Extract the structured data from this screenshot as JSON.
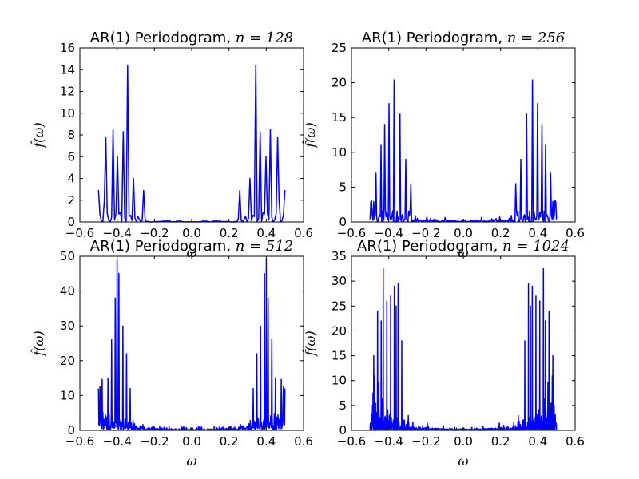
{
  "chart_data": [
    {
      "type": "line",
      "title_text": "AR(1) Periodogram, ",
      "title_math": "n = 128",
      "xlabel": "ω",
      "ylabel": "f̂(ω)",
      "xlim": [
        -0.6,
        0.6
      ],
      "ylim": [
        0,
        16
      ],
      "xticks": [
        -0.6,
        -0.4,
        -0.2,
        0.0,
        0.2,
        0.4,
        0.6
      ],
      "xtick_labels": [
        "−0.6",
        "−0.4",
        "−0.2",
        "0.0",
        "0.2",
        "0.4",
        "0.6"
      ],
      "yticks": [
        0,
        2,
        4,
        6,
        8,
        10,
        12,
        14,
        16
      ],
      "ytick_labels": [
        "0",
        "2",
        "4",
        "6",
        "8",
        "10",
        "12",
        "14",
        "16"
      ],
      "line_color": "#0000ff",
      "grid": false,
      "n": 128,
      "peaks": [
        [
          0.46,
          7.8
        ],
        [
          0.42,
          8.5
        ],
        [
          0.4,
          6.0
        ],
        [
          0.37,
          8.3
        ],
        [
          0.34,
          14.4
        ],
        [
          0.31,
          4.0
        ],
        [
          0.26,
          2.9
        ]
      ]
    },
    {
      "type": "line",
      "title_text": "AR(1) Periodogram, ",
      "title_math": "n = 256",
      "xlabel": "ω",
      "ylabel": "f̂(ω)",
      "xlim": [
        -0.6,
        0.6
      ],
      "ylim": [
        0,
        25
      ],
      "xticks": [
        -0.6,
        -0.4,
        -0.2,
        0.0,
        0.2,
        0.4,
        0.6
      ],
      "xtick_labels": [
        "−0.6",
        "−0.4",
        "−0.2",
        "0.0",
        "0.2",
        "0.4",
        "0.6"
      ],
      "yticks": [
        0,
        5,
        10,
        15,
        20,
        25
      ],
      "ytick_labels": [
        "0",
        "5",
        "10",
        "15",
        "20",
        "25"
      ],
      "line_color": "#0000ff",
      "grid": false,
      "n": 256,
      "peaks": [
        [
          0.37,
          20.4
        ],
        [
          0.4,
          17.0
        ],
        [
          0.34,
          15.5
        ],
        [
          0.42,
          14.0
        ],
        [
          0.44,
          11.0
        ],
        [
          0.31,
          9.0
        ],
        [
          0.47,
          7.0
        ],
        [
          0.28,
          5.5
        ]
      ]
    },
    {
      "type": "line",
      "title_text": "AR(1) Periodogram, ",
      "title_math": "n = 512",
      "xlabel": "ω",
      "ylabel": "f̂(ω)",
      "xlim": [
        -0.6,
        0.6
      ],
      "ylim": [
        0,
        50
      ],
      "xticks": [
        -0.6,
        -0.4,
        -0.2,
        0.0,
        0.2,
        0.4,
        0.6
      ],
      "xtick_labels": [
        "−0.6",
        "−0.4",
        "−0.2",
        "0.0",
        "0.2",
        "0.4",
        "0.6"
      ],
      "yticks": [
        0,
        10,
        20,
        30,
        40,
        50
      ],
      "ytick_labels": [
        "0",
        "10",
        "20",
        "30",
        "40",
        "50"
      ],
      "line_color": "#0000ff",
      "grid": false,
      "n": 512,
      "peaks": [
        [
          0.4,
          49.0
        ],
        [
          0.39,
          45.0
        ],
        [
          0.41,
          38.0
        ],
        [
          0.37,
          30.0
        ],
        [
          0.43,
          26.0
        ],
        [
          0.35,
          22.0
        ],
        [
          0.45,
          15.0
        ],
        [
          0.33,
          12.0
        ],
        [
          0.49,
          9.0
        ]
      ]
    },
    {
      "type": "line",
      "title_text": "AR(1) Periodogram, ",
      "title_math": "n = 1024",
      "xlabel": "ω",
      "ylabel": "f̂(ω)",
      "xlim": [
        -0.6,
        0.6
      ],
      "ylim": [
        0,
        35
      ],
      "xticks": [
        -0.6,
        -0.4,
        -0.2,
        0.0,
        0.2,
        0.4,
        0.6
      ],
      "xtick_labels": [
        "−0.6",
        "−0.4",
        "−0.2",
        "0.0",
        "0.2",
        "0.4",
        "0.6"
      ],
      "yticks": [
        0,
        5,
        10,
        15,
        20,
        25,
        30,
        35
      ],
      "ytick_labels": [
        "0",
        "5",
        "10",
        "15",
        "20",
        "25",
        "30",
        "35"
      ],
      "line_color": "#0000ff",
      "grid": false,
      "n": 1024,
      "peaks": [
        [
          0.43,
          32.5
        ],
        [
          0.35,
          29.5
        ],
        [
          0.37,
          29.0
        ],
        [
          0.39,
          27.0
        ],
        [
          0.41,
          26.0
        ],
        [
          0.36,
          25.0
        ],
        [
          0.46,
          24.0
        ],
        [
          0.44,
          22.0
        ],
        [
          0.33,
          18.0
        ],
        [
          0.48,
          15.0
        ]
      ]
    }
  ]
}
